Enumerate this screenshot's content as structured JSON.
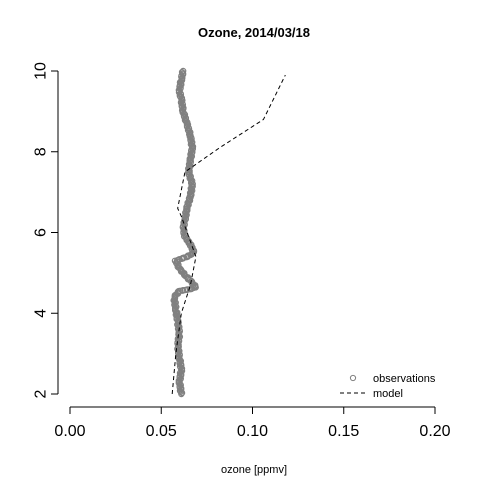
{
  "chart_data": {
    "type": "line",
    "title": "Ozone, 2014/03/18",
    "xlabel": "ozone [ppmv]",
    "ylabel": "",
    "xlim": [
      0.0,
      0.2
    ],
    "ylim": [
      2,
      10
    ],
    "x_ticks": [
      "0.00",
      "0.05",
      "0.10",
      "0.15",
      "0.20"
    ],
    "y_ticks": [
      "2",
      "4",
      "6",
      "8",
      "10"
    ],
    "grid": false,
    "legend_position": "bottom-right",
    "series": [
      {
        "name": "observations",
        "style": "points",
        "color": "#808080",
        "points": [
          [
            0.061,
            2.0
          ],
          [
            0.06,
            2.3
          ],
          [
            0.061,
            2.6
          ],
          [
            0.06,
            2.9
          ],
          [
            0.059,
            3.2
          ],
          [
            0.06,
            3.5
          ],
          [
            0.059,
            3.8
          ],
          [
            0.058,
            4.1
          ],
          [
            0.057,
            4.4
          ],
          [
            0.06,
            4.55
          ],
          [
            0.066,
            4.6
          ],
          [
            0.069,
            4.65
          ],
          [
            0.066,
            4.8
          ],
          [
            0.063,
            4.95
          ],
          [
            0.06,
            5.1
          ],
          [
            0.058,
            5.3
          ],
          [
            0.064,
            5.4
          ],
          [
            0.068,
            5.5
          ],
          [
            0.066,
            5.7
          ],
          [
            0.063,
            5.9
          ],
          [
            0.062,
            6.1
          ],
          [
            0.063,
            6.3
          ],
          [
            0.064,
            6.6
          ],
          [
            0.066,
            6.9
          ],
          [
            0.067,
            7.2
          ],
          [
            0.065,
            7.5
          ],
          [
            0.066,
            7.8
          ],
          [
            0.067,
            8.1
          ],
          [
            0.066,
            8.4
          ],
          [
            0.064,
            8.7
          ],
          [
            0.062,
            9.0
          ],
          [
            0.061,
            9.3
          ],
          [
            0.06,
            9.5
          ],
          [
            0.061,
            9.8
          ],
          [
            0.062,
            10.0
          ]
        ]
      },
      {
        "name": "model",
        "style": "dashed-line",
        "color": "#000000",
        "points": [
          [
            0.056,
            2.0
          ],
          [
            0.058,
            3.0
          ],
          [
            0.061,
            4.0
          ],
          [
            0.066,
            4.7
          ],
          [
            0.069,
            5.4
          ],
          [
            0.061,
            6.4
          ],
          [
            0.059,
            6.6
          ],
          [
            0.063,
            7.5
          ],
          [
            0.082,
            8.1
          ],
          [
            0.106,
            8.8
          ],
          [
            0.118,
            9.9
          ]
        ]
      }
    ]
  }
}
